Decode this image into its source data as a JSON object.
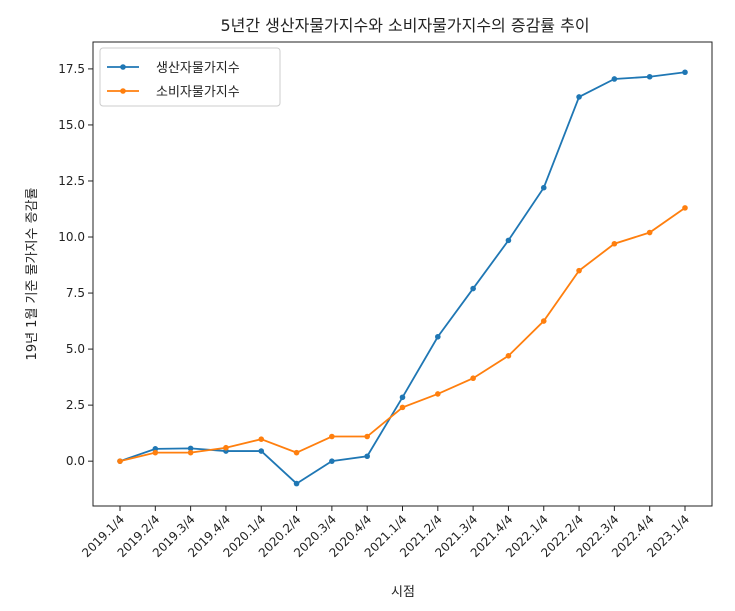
{
  "chart_data": {
    "type": "line",
    "title": "5년간 생산자물가지수와 소비자물가지수의 증감률 추이",
    "xlabel": "시점",
    "ylabel": "19년 1월 기준 물가지수 증감률",
    "categories": [
      "2019.1/4",
      "2019.2/4",
      "2019.3/4",
      "2019.4/4",
      "2020.1/4",
      "2020.2/4",
      "2020.3/4",
      "2020.4/4",
      "2021.1/4",
      "2021.2/4",
      "2021.3/4",
      "2021.4/4",
      "2022.1/4",
      "2022.2/4",
      "2022.3/4",
      "2022.4/4",
      "2023.1/4"
    ],
    "yticks": [
      "0.0",
      "2.5",
      "5.0",
      "7.5",
      "10.0",
      "12.5",
      "15.0",
      "17.5"
    ],
    "ylim": [
      -2.0,
      18.7
    ],
    "legend_position": "top-left",
    "grid": false,
    "series": [
      {
        "name": "생산자물가지수",
        "color": "#1f77b4",
        "values": [
          0.0,
          0.55,
          0.57,
          0.45,
          0.45,
          -1.0,
          0.0,
          0.22,
          2.85,
          5.55,
          7.7,
          9.85,
          12.2,
          16.25,
          17.05,
          17.15,
          17.35
        ]
      },
      {
        "name": "소비자물가지수",
        "color": "#ff7f0e",
        "values": [
          0.0,
          0.38,
          0.38,
          0.6,
          0.98,
          0.38,
          1.1,
          1.1,
          2.4,
          3.0,
          3.7,
          4.7,
          6.25,
          8.5,
          9.7,
          10.2,
          11.3
        ]
      }
    ]
  }
}
